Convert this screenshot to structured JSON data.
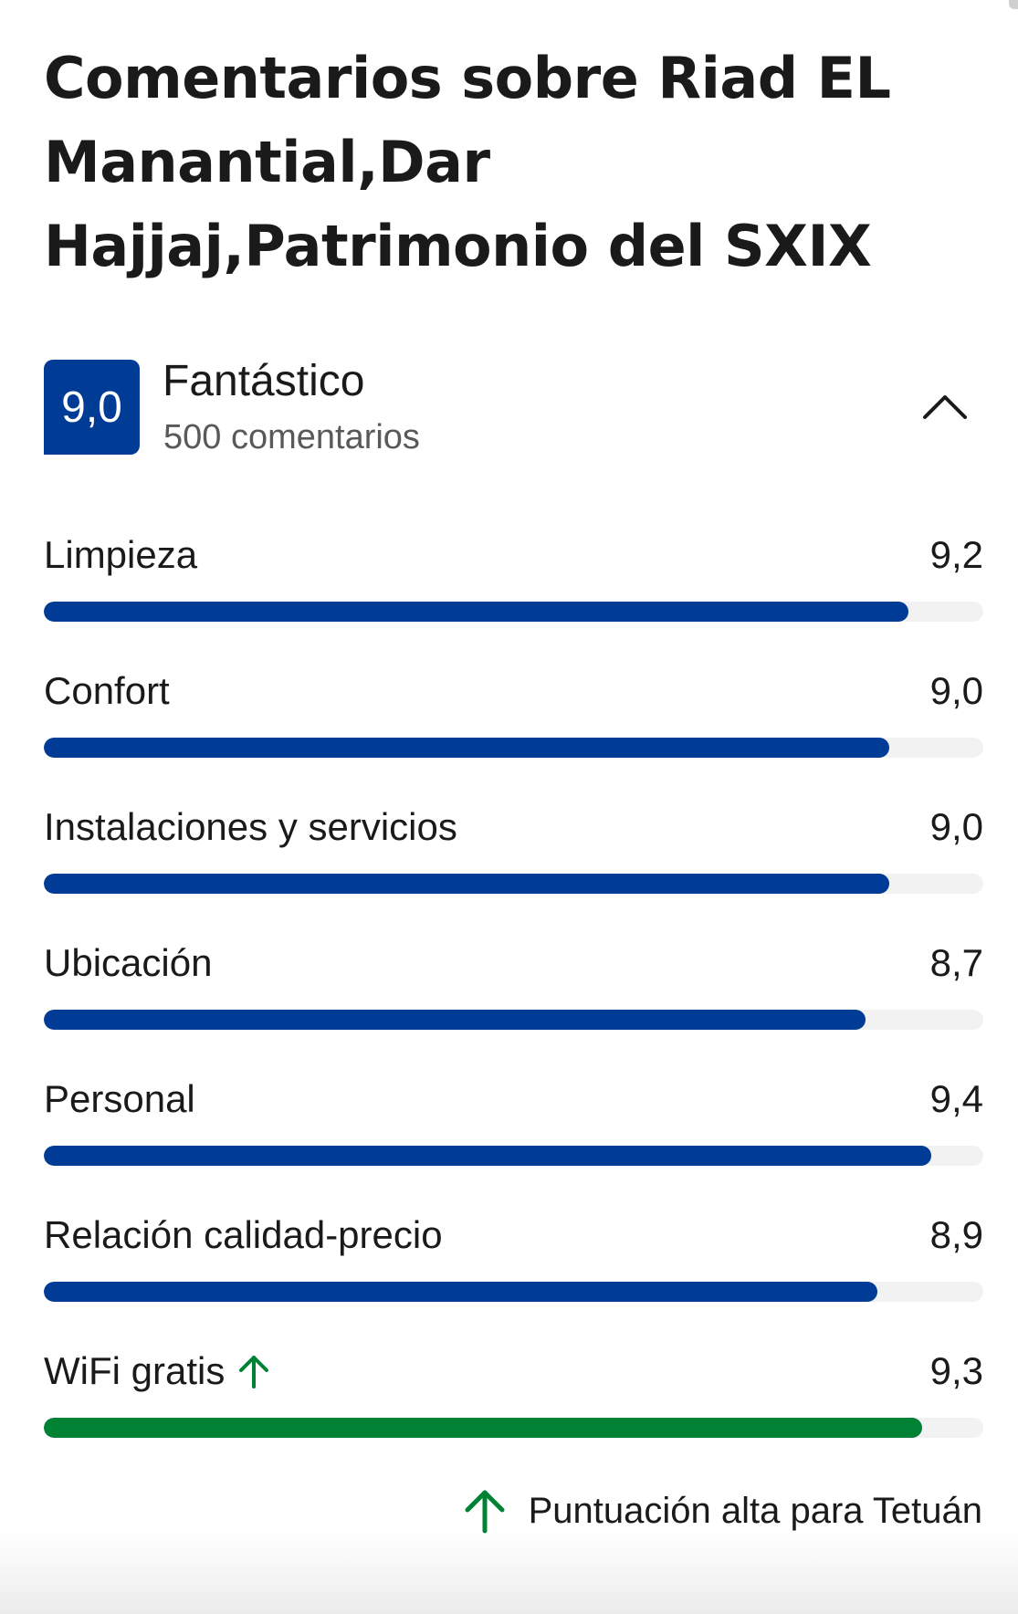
{
  "title": "Comentarios sobre Riad EL Manantial,Dar Hajjaj,Patrimonio del SXIX",
  "score": {
    "value": "9,0",
    "label": "Fantástico",
    "review_count": "500 comentarios"
  },
  "icons": {
    "collapse": "chevron-up-icon",
    "high_score": "arrow-up-icon"
  },
  "colors": {
    "brand": "#003b95",
    "highlight": "#008234",
    "track": "#f2f2f2"
  },
  "categories": [
    {
      "label": "Limpieza",
      "value": "9,2",
      "fill_fraction": 0.92,
      "highlight": false
    },
    {
      "label": "Confort",
      "value": "9,0",
      "fill_fraction": 0.9,
      "highlight": false
    },
    {
      "label": "Instalaciones y servicios",
      "value": "9,0",
      "fill_fraction": 0.9,
      "highlight": false
    },
    {
      "label": "Ubicación",
      "value": "8,7",
      "fill_fraction": 0.875,
      "highlight": false
    },
    {
      "label": "Personal",
      "value": "9,4",
      "fill_fraction": 0.945,
      "highlight": false
    },
    {
      "label": "Relación calidad-precio",
      "value": "8,9",
      "fill_fraction": 0.887,
      "highlight": false
    },
    {
      "label": "WiFi gratis",
      "value": "9,3",
      "fill_fraction": 0.935,
      "highlight": true
    }
  ],
  "footnote": "Puntuación alta para Tetuán"
}
